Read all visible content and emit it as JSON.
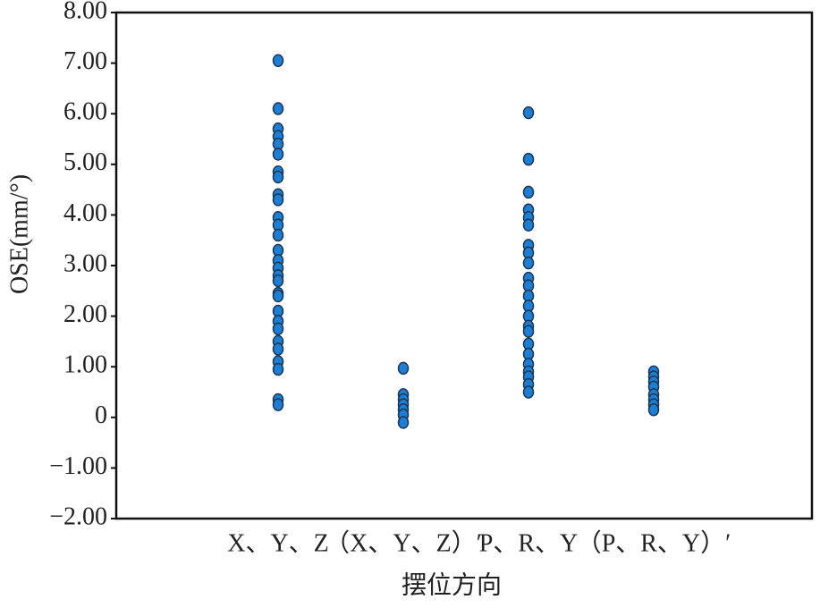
{
  "chart_data": {
    "type": "strip",
    "x_label": "摆位方向",
    "y_label": "OSE(mm/°)",
    "categories": [
      "X、Y、Z",
      "（X、Y、Z）′",
      "P、R、Y",
      "（P、R、Y）′"
    ],
    "values": [
      [
        7.05,
        6.1,
        5.7,
        5.55,
        5.4,
        5.2,
        4.85,
        4.75,
        4.4,
        4.3,
        3.95,
        3.8,
        3.6,
        3.3,
        3.1,
        2.95,
        2.8,
        2.7,
        2.45,
        2.4,
        2.1,
        1.9,
        1.75,
        1.5,
        1.35,
        1.1,
        0.95,
        0.35,
        0.25
      ],
      [
        0.97,
        0.45,
        0.35,
        0.25,
        0.15,
        0.05,
        -0.1
      ],
      [
        6.02,
        5.1,
        4.45,
        4.1,
        3.95,
        3.8,
        3.4,
        3.25,
        3.05,
        2.75,
        2.6,
        2.4,
        2.2,
        2.0,
        1.8,
        1.7,
        1.45,
        1.25,
        1.05,
        0.9,
        0.8,
        0.65,
        0.5
      ],
      [
        0.9,
        0.8,
        0.7,
        0.6,
        0.45,
        0.35,
        0.25,
        0.15
      ]
    ],
    "color": "#1b7fd6",
    "ylim": [
      -2,
      8
    ],
    "yticks": [
      {
        "value": -2,
        "label": "−2.00"
      },
      {
        "value": -1,
        "label": "−1.00"
      },
      0,
      {
        "value": 1,
        "label": "1.00"
      },
      {
        "value": 2,
        "label": "2.00"
      },
      {
        "value": 3,
        "label": "3.00"
      },
      {
        "value": 4,
        "label": "4.00"
      },
      {
        "value": 5,
        "label": "5.00"
      },
      {
        "value": 6,
        "label": "6.00"
      },
      {
        "value": 7,
        "label": "7.00"
      },
      {
        "value": 8,
        "label": "8.00"
      }
    ]
  }
}
